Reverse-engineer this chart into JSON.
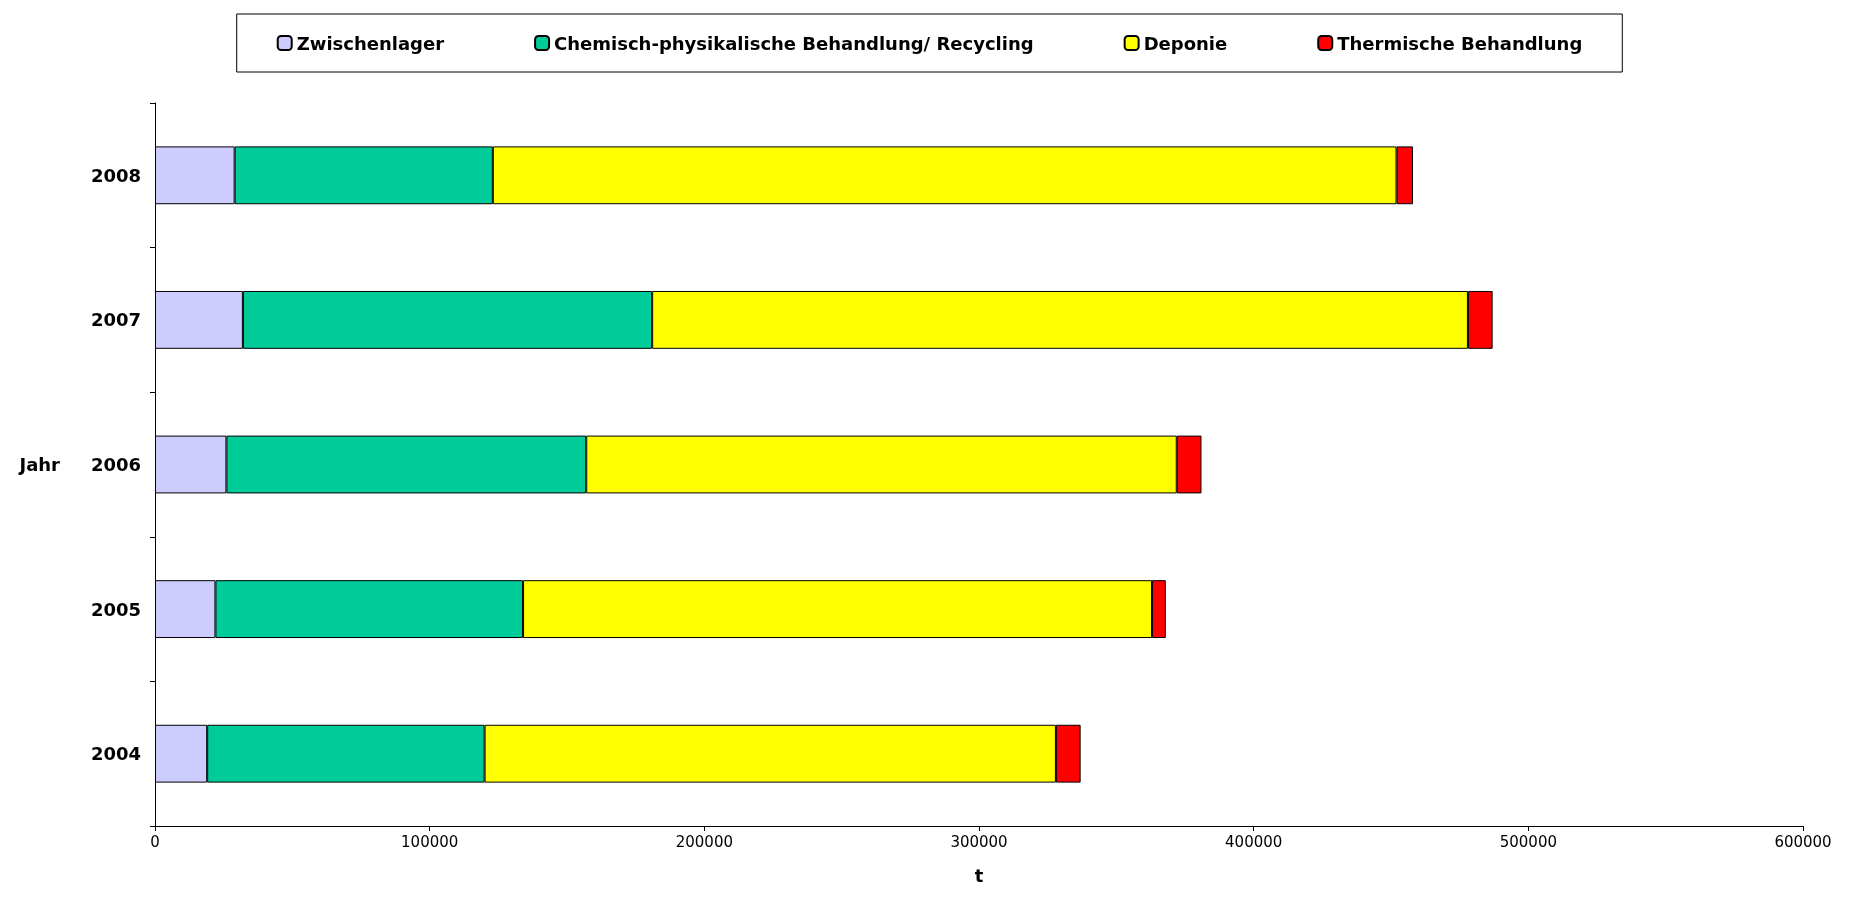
{
  "chart_data": {
    "type": "bar",
    "orientation": "horizontal",
    "stacked": true,
    "legend": "top",
    "grid": false,
    "xlabel": "t",
    "ylabel": "Jahr",
    "categories": [
      "2008",
      "2007",
      "2006",
      "2005",
      "2004"
    ],
    "xlim": [
      0,
      600000
    ],
    "xticks": [
      0,
      100000,
      200000,
      300000,
      400000,
      500000,
      600000
    ],
    "series": [
      {
        "name": "Zwischenlager",
        "color": "#ccccff",
        "values": [
          29000,
          32000,
          26000,
          22000,
          19000
        ]
      },
      {
        "name": "Chemisch-physikalische Behandlung/ Recycling",
        "color": "#00cc99",
        "values": [
          94000,
          149000,
          131000,
          112000,
          101000
        ]
      },
      {
        "name": "Deponie",
        "color": "#ffff00",
        "values": [
          329000,
          297000,
          215000,
          229000,
          208000
        ]
      },
      {
        "name": "Thermische Behandlung",
        "color": "#ff0000",
        "values": [
          6000,
          9000,
          9000,
          5000,
          9000
        ]
      }
    ]
  }
}
